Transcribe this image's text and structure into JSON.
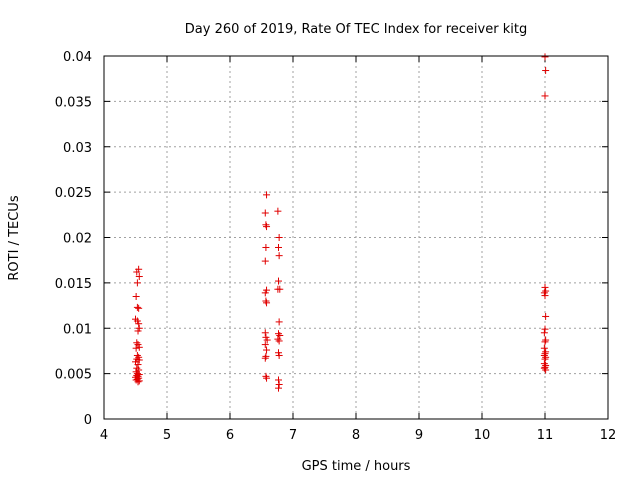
{
  "chart_data": {
    "type": "scatter",
    "title": "Day 260 of 2019, Rate Of TEC Index for receiver kitg",
    "xlabel": "GPS time / hours",
    "ylabel": "ROTI / TECUs",
    "xlim": [
      4,
      12
    ],
    "ylim": [
      0,
      0.04
    ],
    "xticks": [
      4,
      5,
      6,
      7,
      8,
      9,
      10,
      11,
      12
    ],
    "yticks": [
      0,
      0.005,
      0.01,
      0.015,
      0.02,
      0.025,
      0.03,
      0.035,
      0.04
    ],
    "xtick_labels": [
      "4",
      "5",
      "6",
      "7",
      "8",
      "9",
      "10",
      "11",
      "12"
    ],
    "ytick_labels": [
      "0",
      "0.005",
      "0.01",
      "0.015",
      "0.02",
      "0.025",
      "0.03",
      "0.035",
      "0.04"
    ],
    "grid": true,
    "marker": "+",
    "marker_color": "#e00000",
    "series": [
      {
        "name": "ROTI",
        "points": [
          [
            4.52,
            0.0162
          ],
          [
            4.55,
            0.0165
          ],
          [
            4.56,
            0.0157
          ],
          [
            4.53,
            0.015
          ],
          [
            4.51,
            0.0135
          ],
          [
            4.53,
            0.0123
          ],
          [
            4.55,
            0.0122
          ],
          [
            4.5,
            0.011
          ],
          [
            4.53,
            0.0108
          ],
          [
            4.55,
            0.0105
          ],
          [
            4.56,
            0.01
          ],
          [
            4.54,
            0.0097
          ],
          [
            4.52,
            0.0084
          ],
          [
            4.54,
            0.0082
          ],
          [
            4.56,
            0.0079
          ],
          [
            4.51,
            0.0078
          ],
          [
            4.53,
            0.007
          ],
          [
            4.55,
            0.0068
          ],
          [
            4.52,
            0.0066
          ],
          [
            4.56,
            0.0065
          ],
          [
            4.5,
            0.0063
          ],
          [
            4.54,
            0.006
          ],
          [
            4.52,
            0.0056
          ],
          [
            4.55,
            0.0054
          ],
          [
            4.51,
            0.0052
          ],
          [
            4.53,
            0.005
          ],
          [
            4.56,
            0.0049
          ],
          [
            4.52,
            0.0048
          ],
          [
            4.54,
            0.0047
          ],
          [
            4.5,
            0.0046
          ],
          [
            4.55,
            0.0045
          ],
          [
            4.53,
            0.0044
          ],
          [
            4.51,
            0.0043
          ],
          [
            4.56,
            0.0042
          ],
          [
            4.54,
            0.0041
          ],
          [
            6.58,
            0.0247
          ],
          [
            6.56,
            0.0227
          ],
          [
            6.57,
            0.0214
          ],
          [
            6.58,
            0.0212
          ],
          [
            6.57,
            0.0189
          ],
          [
            6.56,
            0.0174
          ],
          [
            6.58,
            0.0142
          ],
          [
            6.56,
            0.0139
          ],
          [
            6.57,
            0.013
          ],
          [
            6.58,
            0.0128
          ],
          [
            6.56,
            0.0095
          ],
          [
            6.57,
            0.009
          ],
          [
            6.59,
            0.0087
          ],
          [
            6.56,
            0.0082
          ],
          [
            6.58,
            0.0076
          ],
          [
            6.57,
            0.0069
          ],
          [
            6.56,
            0.0067
          ],
          [
            6.57,
            0.0047
          ],
          [
            6.58,
            0.0045
          ],
          [
            6.76,
            0.0229
          ],
          [
            6.78,
            0.02
          ],
          [
            6.77,
            0.0189
          ],
          [
            6.78,
            0.018
          ],
          [
            6.77,
            0.0152
          ],
          [
            6.76,
            0.0143
          ],
          [
            6.79,
            0.0143
          ],
          [
            6.78,
            0.0107
          ],
          [
            6.77,
            0.0094
          ],
          [
            6.79,
            0.0092
          ],
          [
            6.76,
            0.0088
          ],
          [
            6.78,
            0.0086
          ],
          [
            6.77,
            0.0073
          ],
          [
            6.78,
            0.007
          ],
          [
            6.77,
            0.0043
          ],
          [
            6.78,
            0.0038
          ],
          [
            6.77,
            0.0034
          ],
          [
            11.0,
            0.0399
          ],
          [
            11.01,
            0.0384
          ],
          [
            11.0,
            0.0356
          ],
          [
            11.0,
            0.0145
          ],
          [
            11.01,
            0.0141
          ],
          [
            10.99,
            0.0139
          ],
          [
            11.0,
            0.0136
          ],
          [
            11.01,
            0.0113
          ],
          [
            11.0,
            0.0099
          ],
          [
            10.99,
            0.0095
          ],
          [
            11.01,
            0.0087
          ],
          [
            11.0,
            0.0085
          ],
          [
            10.99,
            0.0078
          ],
          [
            11.01,
            0.0074
          ],
          [
            11.0,
            0.0072
          ],
          [
            10.99,
            0.007
          ],
          [
            11.01,
            0.0068
          ],
          [
            11.0,
            0.0066
          ],
          [
            10.99,
            0.0061
          ],
          [
            11.01,
            0.0059
          ],
          [
            11.0,
            0.0057
          ],
          [
            10.99,
            0.0056
          ],
          [
            11.01,
            0.0054
          ]
        ]
      }
    ]
  }
}
